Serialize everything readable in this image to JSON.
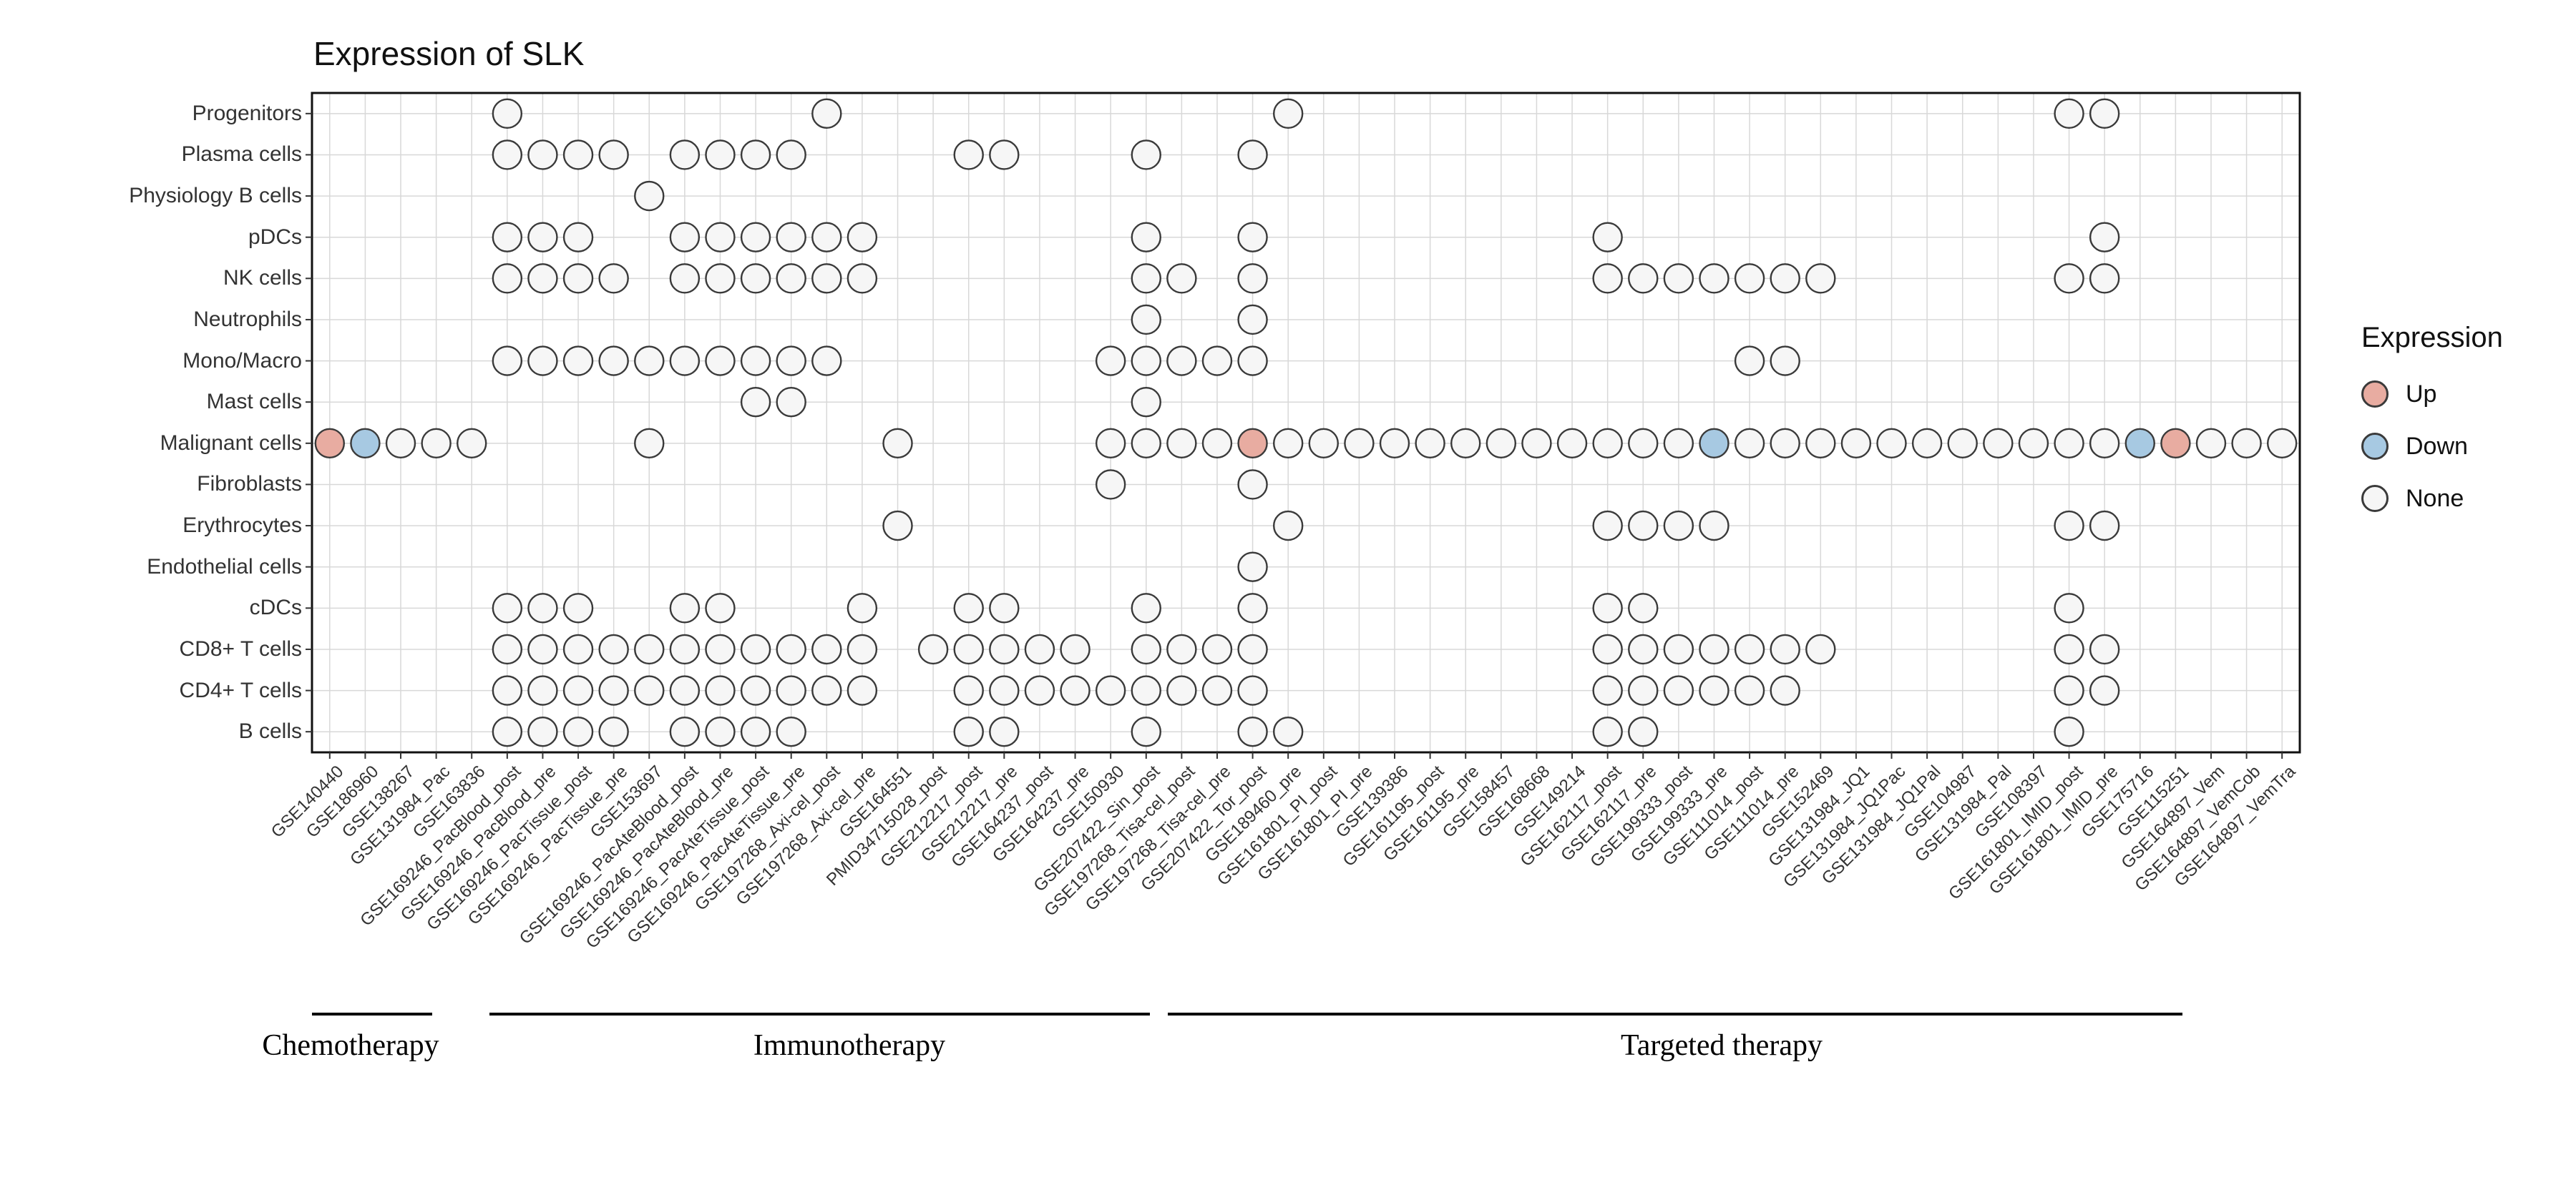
{
  "chart_data": {
    "type": "heatmap",
    "mark": "dot",
    "title": "Expression of SLK",
    "legend": {
      "title": "Expression",
      "position": "right",
      "items": [
        {
          "label": "Up",
          "value": "up",
          "color": "#e8aca1"
        },
        {
          "label": "Down",
          "value": "down",
          "color": "#a7c9e2"
        },
        {
          "label": "None",
          "value": "none",
          "color": "#f6f6f6"
        }
      ]
    },
    "groups": [
      {
        "label": "Chemotherapy",
        "col_start": 1,
        "col_end": 5
      },
      {
        "label": "Immunotherapy",
        "col_start": 6,
        "col_end": 27
      },
      {
        "label": "Targeted therapy",
        "col_start": 28,
        "col_end": 56
      }
    ],
    "rows": [
      "Progenitors",
      "Plasma cells",
      "Physiology B cells",
      "pDCs",
      "NK cells",
      "Neutrophils",
      "Mono/Macro",
      "Mast cells",
      "Malignant cells",
      "Fibroblasts",
      "Erythrocytes",
      "Endothelial cells",
      "cDCs",
      "CD8+ T cells",
      "CD4+ T cells",
      "B cells"
    ],
    "columns": [
      "GSE140440",
      "GSE186960",
      "GSE138267",
      "GSE131984_Pac",
      "GSE163836",
      "GSE169246_PacBlood_post",
      "GSE169246_PacBlood_pre",
      "GSE169246_PacTissue_post",
      "GSE169246_PacTissue_pre",
      "GSE153697",
      "GSE169246_PacAteBlood_post",
      "GSE169246_PacAteBlood_pre",
      "GSE169246_PacAteTissue_post",
      "GSE169246_PacAteTissue_pre",
      "GSE197268_Axi-cel_post",
      "GSE197268_Axi-cel_pre",
      "GSE164551",
      "PMID34715028_post",
      "GSE212217_post",
      "GSE212217_pre",
      "GSE164237_post",
      "GSE164237_pre",
      "GSE150930",
      "GSE207422_Sin_post",
      "GSE197268_Tisa-cel_post",
      "GSE197268_Tisa-cel_pre",
      "GSE207422_Tor_post",
      "GSE189460_pre",
      "GSE161801_PI_post",
      "GSE161801_PI_pre",
      "GSE139386",
      "GSE161195_post",
      "GSE161195_pre",
      "GSE158457",
      "GSE168668",
      "GSE149214",
      "GSE162117_post",
      "GSE162117_pre",
      "GSE199333_post",
      "GSE199333_pre",
      "GSE111014_post",
      "GSE111014_pre",
      "GSE152469",
      "GSE131984_JQ1",
      "GSE131984_JQ1Pac",
      "GSE131984_JQ1Pal",
      "GSE104987",
      "GSE131984_Pal",
      "GSE108397",
      "GSE161801_IMID_post",
      "GSE161801_IMID_pre",
      "GSE175716",
      "GSE115251",
      "GSE164897_Vem",
      "GSE164897_VemCob",
      "GSE164897_VemTra"
    ],
    "cells": [
      {
        "row": "Progenitors",
        "none": [
          6,
          15,
          28,
          50,
          51
        ]
      },
      {
        "row": "Plasma cells",
        "none": [
          6,
          7,
          8,
          9,
          11,
          12,
          13,
          14,
          19,
          20,
          24,
          27
        ]
      },
      {
        "row": "Physiology B cells",
        "none": [
          10
        ]
      },
      {
        "row": "pDCs",
        "none": [
          6,
          7,
          8,
          11,
          12,
          13,
          14,
          15,
          16,
          24,
          27,
          37,
          51
        ]
      },
      {
        "row": "NK cells",
        "none": [
          6,
          7,
          8,
          9,
          11,
          12,
          13,
          14,
          15,
          16,
          24,
          25,
          27,
          37,
          38,
          39,
          40,
          41,
          42,
          43,
          50,
          51
        ]
      },
      {
        "row": "Neutrophils",
        "none": [
          24,
          27
        ]
      },
      {
        "row": "Mono/Macro",
        "none": [
          6,
          7,
          8,
          9,
          10,
          11,
          12,
          13,
          14,
          15,
          23,
          24,
          25,
          26,
          27,
          41,
          42
        ]
      },
      {
        "row": "Mast cells",
        "none": [
          13,
          14,
          24
        ]
      },
      {
        "row": "Malignant cells",
        "up": [
          1,
          27,
          53
        ],
        "down": [
          2,
          40,
          52
        ],
        "none": [
          3,
          4,
          5,
          10,
          17,
          23,
          24,
          25,
          26,
          28,
          29,
          30,
          31,
          32,
          33,
          34,
          35,
          36,
          37,
          38,
          39,
          41,
          42,
          43,
          44,
          45,
          46,
          47,
          48,
          49,
          50,
          51,
          54,
          55,
          56
        ]
      },
      {
        "row": "Fibroblasts",
        "none": [
          23,
          27
        ]
      },
      {
        "row": "Erythrocytes",
        "none": [
          17,
          28,
          37,
          38,
          39,
          40,
          50,
          51
        ]
      },
      {
        "row": "Endothelial cells",
        "none": [
          27
        ]
      },
      {
        "row": "cDCs",
        "none": [
          6,
          7,
          8,
          11,
          12,
          16,
          19,
          20,
          24,
          27,
          37,
          38,
          50
        ]
      },
      {
        "row": "CD8+ T cells",
        "none": [
          6,
          7,
          8,
          9,
          10,
          11,
          12,
          13,
          14,
          15,
          16,
          18,
          19,
          20,
          21,
          22,
          24,
          25,
          26,
          27,
          37,
          38,
          39,
          40,
          41,
          42,
          43,
          50,
          51
        ]
      },
      {
        "row": "CD4+ T cells",
        "none": [
          6,
          7,
          8,
          9,
          10,
          11,
          12,
          13,
          14,
          15,
          16,
          19,
          20,
          21,
          22,
          23,
          24,
          25,
          26,
          27,
          37,
          38,
          39,
          40,
          41,
          42,
          50,
          51
        ]
      },
      {
        "row": "B cells",
        "none": [
          6,
          7,
          8,
          9,
          11,
          12,
          13,
          14,
          19,
          20,
          24,
          27,
          28,
          37,
          38,
          50
        ]
      }
    ]
  }
}
